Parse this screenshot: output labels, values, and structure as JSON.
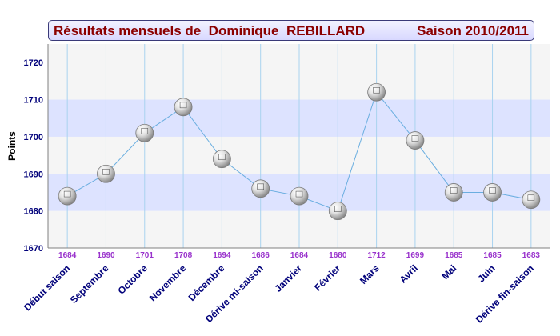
{
  "chart_data": {
    "type": "line",
    "title_left": "Résultats mensuels de  Dominique  REBILLARD",
    "title_right": "Saison 2010/2011",
    "ylabel": "Points",
    "ylim": [
      1670,
      1725
    ],
    "yticks": [
      1670,
      1680,
      1690,
      1700,
      1710,
      1720
    ],
    "bands": [
      [
        1680,
        1690
      ],
      [
        1700,
        1710
      ]
    ],
    "categories": [
      "Début saison",
      "Septembre",
      "Octobre",
      "Novembre",
      "Décembre",
      "Dérive mi-saison",
      "Janvier",
      "Février",
      "Mars",
      "Avril",
      "Mai",
      "Juin",
      "Dérive fin-saison"
    ],
    "values": [
      1684,
      1690,
      1701,
      1708,
      1694,
      1686,
      1684,
      1680,
      1712,
      1699,
      1685,
      1685,
      1683
    ],
    "colors": {
      "line": "#6aaee0",
      "band": "#dde3ff",
      "value_label": "#9932cc",
      "category_label": "#00007a",
      "title": "#8b0000"
    }
  }
}
